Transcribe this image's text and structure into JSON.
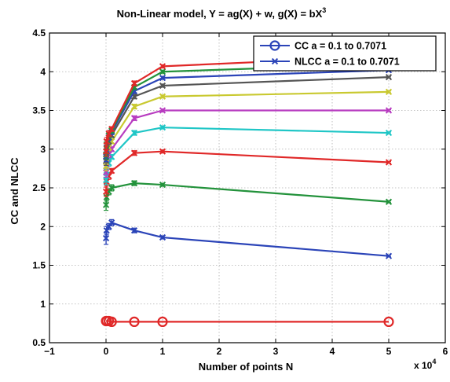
{
  "chart_data": {
    "type": "line",
    "title": "Non-Linear model, Y = ag(X) + w, g(X) = bX",
    "title_superscript": "3",
    "xlabel": "Number of points N",
    "ylabel": "CC and NLCC",
    "x_multiplier_label": "x 10",
    "x_multiplier_exponent": "4",
    "xlim": [
      -1,
      6
    ],
    "ylim": [
      0.5,
      4.5
    ],
    "xticks": [
      -1,
      0,
      1,
      2,
      3,
      4,
      5,
      6
    ],
    "yticks": [
      0.5,
      1,
      1.5,
      2,
      2.5,
      3,
      3.5,
      4,
      4.5
    ],
    "xtick_labels": [
      "−1",
      "0",
      "1",
      "2",
      "3",
      "4",
      "5",
      "6"
    ],
    "ytick_labels": [
      "0.5",
      "1",
      "1.5",
      "2",
      "2.5",
      "3",
      "3.5",
      "4",
      "4.5"
    ],
    "grid": true,
    "legend_position": "top-right",
    "legend": [
      {
        "label": "CC a = 0.1 to 0.7071",
        "marker": "circle",
        "color": "#2b44b8"
      },
      {
        "label": "NLCC a = 0.1 to 0.7071",
        "marker": "x",
        "color": "#2b44b8"
      }
    ],
    "x": [
      0.001,
      0.01,
      0.05,
      0.1,
      0.5,
      1,
      5
    ],
    "series": [
      {
        "color": "#2b44b8",
        "marker": "x",
        "values": [
          1.85,
          1.95,
          2.0,
          2.05,
          1.95,
          1.86,
          1.62
        ],
        "errors": [
          0.08,
          0.05,
          0.04,
          0.04,
          0.03,
          0.02,
          0.01
        ]
      },
      {
        "color": "#23923b",
        "marker": "x",
        "values": [
          2.28,
          2.38,
          2.45,
          2.5,
          2.56,
          2.54,
          2.32
        ],
        "errors": [
          0.07,
          0.05,
          0.04,
          0.04,
          0.03,
          0.02,
          0.01
        ]
      },
      {
        "color": "#e02828",
        "marker": "x",
        "values": [
          2.45,
          2.58,
          2.65,
          2.72,
          2.95,
          2.97,
          2.83
        ],
        "errors": [
          0.06,
          0.05,
          0.04,
          0.03,
          0.03,
          0.02,
          0.01
        ]
      },
      {
        "color": "#1fc6c6",
        "marker": "x",
        "values": [
          2.6,
          2.72,
          2.82,
          2.9,
          3.21,
          3.28,
          3.21
        ],
        "errors": [
          0.06,
          0.05,
          0.04,
          0.03,
          0.03,
          0.02,
          0.01
        ]
      },
      {
        "color": "#b83cc0",
        "marker": "x",
        "values": [
          2.7,
          2.82,
          2.93,
          3.0,
          3.4,
          3.5,
          3.5
        ],
        "errors": [
          0.06,
          0.05,
          0.04,
          0.03,
          0.03,
          0.02,
          0.01
        ]
      },
      {
        "color": "#c9c930",
        "marker": "x",
        "values": [
          2.78,
          2.9,
          3.02,
          3.1,
          3.55,
          3.68,
          3.74
        ],
        "errors": [
          0.06,
          0.05,
          0.04,
          0.03,
          0.03,
          0.02,
          0.01
        ]
      },
      {
        "color": "#555555",
        "marker": "x",
        "values": [
          2.85,
          2.97,
          3.1,
          3.18,
          3.68,
          3.82,
          3.93
        ],
        "errors": [
          0.06,
          0.05,
          0.04,
          0.03,
          0.03,
          0.02,
          0.01
        ]
      },
      {
        "color": "#2b44b8",
        "marker": "x",
        "values": [
          2.9,
          3.02,
          3.15,
          3.22,
          3.75,
          3.92,
          4.02
        ],
        "errors": [
          0.06,
          0.05,
          0.04,
          0.03,
          0.03,
          0.02,
          0.01
        ]
      },
      {
        "color": "#23923b",
        "marker": "x",
        "values": [
          2.93,
          3.06,
          3.18,
          3.24,
          3.8,
          4.0,
          4.1
        ],
        "errors": [
          0.06,
          0.05,
          0.04,
          0.03,
          0.03,
          0.02,
          0.01
        ]
      },
      {
        "color": "#e02828",
        "marker": "x",
        "values": [
          2.97,
          3.1,
          3.2,
          3.26,
          3.85,
          4.07,
          4.2
        ],
        "errors": [
          0.06,
          0.05,
          0.04,
          0.03,
          0.03,
          0.02,
          0.01
        ]
      },
      {
        "color": "#e02828",
        "marker": "circle",
        "values": [
          0.78,
          0.78,
          0.78,
          0.77,
          0.77,
          0.77,
          0.77
        ],
        "errors": [
          0,
          0,
          0,
          0,
          0,
          0,
          0
        ]
      }
    ]
  }
}
